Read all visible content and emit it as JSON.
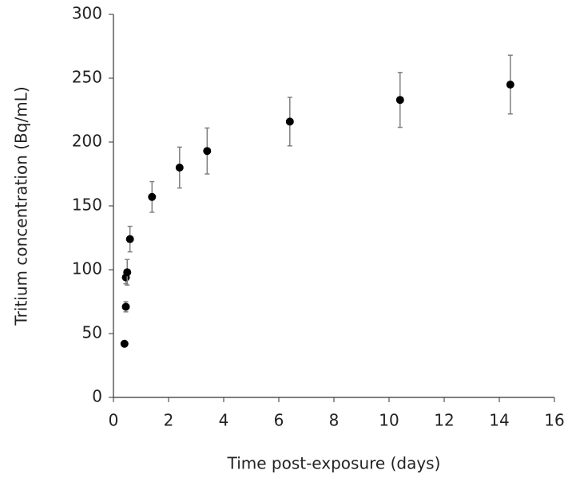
{
  "chart_data": {
    "type": "scatter",
    "x_label": "Time post-exposure (days)",
    "y_label": "Tritium concentration (Bq/mL)",
    "x": [
      0.4,
      0.45,
      0.45,
      0.5,
      0.6,
      1.4,
      2.4,
      3.4,
      6.4,
      10.4,
      14.4
    ],
    "values": [
      42,
      71,
      94,
      98,
      124,
      157,
      180,
      193,
      216,
      233,
      245
    ],
    "errors": [
      0,
      4,
      5,
      10,
      10,
      12,
      16,
      18,
      19,
      21.5,
      23
    ],
    "color": "#000000",
    "error_color": "#808080",
    "xlim": [
      0,
      16
    ],
    "xticks": [
      0,
      2,
      4,
      6,
      8,
      10,
      12,
      14,
      16
    ],
    "ylim": [
      0,
      300
    ],
    "yticks": [
      0,
      50,
      100,
      150,
      200,
      250,
      300
    ]
  }
}
